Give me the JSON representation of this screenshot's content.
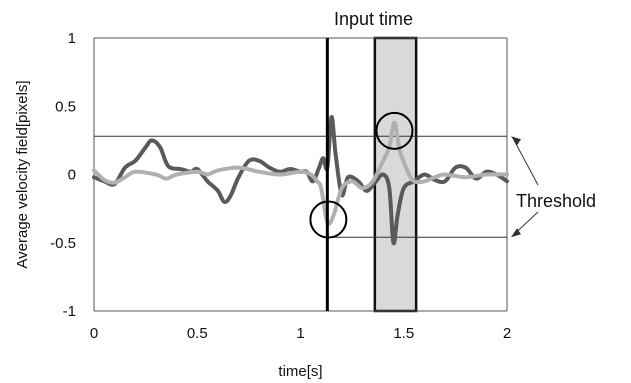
{
  "chart_data": {
    "type": "line",
    "xlabel": "time[s]",
    "ylabel": "Average velocity field[pixels]",
    "xlim": [
      0,
      2
    ],
    "ylim": [
      -1,
      1
    ],
    "xticks": [
      0,
      0.5,
      1,
      1.5,
      2
    ],
    "xtick_labels": [
      "0",
      "0.5",
      "1",
      "1.5",
      "2"
    ],
    "yticks": [
      1,
      0.5,
      0,
      -0.5,
      -1
    ],
    "ytick_labels": [
      "1",
      "0.5",
      "0",
      "-0.5",
      "-1"
    ],
    "grid": false,
    "threshold": {
      "upper": 0.28,
      "lower": -0.46,
      "label": "Threshold"
    },
    "input_marker": {
      "x": 1.13
    },
    "input_time": {
      "label": "Input time",
      "x_range": [
        1.36,
        1.56
      ],
      "color": "#d9d9d9"
    },
    "circled_points": [
      {
        "x": 1.135,
        "y": -0.33
      },
      {
        "x": 1.455,
        "y": 0.32
      }
    ],
    "series": [
      {
        "color": "#5a5a5a",
        "values": [
          [
            0,
            -0.02
          ],
          [
            0.05,
            -0.05
          ],
          [
            0.1,
            -0.07
          ],
          [
            0.15,
            0.05
          ],
          [
            0.2,
            0.1
          ],
          [
            0.25,
            0.2
          ],
          [
            0.28,
            0.25
          ],
          [
            0.32,
            0.2
          ],
          [
            0.36,
            0.06
          ],
          [
            0.42,
            0.04
          ],
          [
            0.47,
            0.02
          ],
          [
            0.5,
            0.04
          ],
          [
            0.55,
            -0.05
          ],
          [
            0.6,
            -0.12
          ],
          [
            0.63,
            -0.2
          ],
          [
            0.66,
            -0.16
          ],
          [
            0.7,
            -0.02
          ],
          [
            0.75,
            0.1
          ],
          [
            0.8,
            0.1
          ],
          [
            0.85,
            0.05
          ],
          [
            0.9,
            0.02
          ],
          [
            0.95,
            0.04
          ],
          [
            1.0,
            0.02
          ],
          [
            1.03,
            0.02
          ],
          [
            1.06,
            -0.05
          ],
          [
            1.09,
            0.05
          ],
          [
            1.11,
            0.12
          ],
          [
            1.13,
            0.05
          ],
          [
            1.15,
            0.42
          ],
          [
            1.17,
            0.15
          ],
          [
            1.2,
            -0.15
          ],
          [
            1.23,
            -0.02
          ],
          [
            1.28,
            -0.05
          ],
          [
            1.32,
            -0.12
          ],
          [
            1.36,
            -0.06
          ],
          [
            1.4,
            0.0
          ],
          [
            1.43,
            -0.1
          ],
          [
            1.45,
            -0.5
          ],
          [
            1.47,
            -0.3
          ],
          [
            1.5,
            -0.1
          ],
          [
            1.55,
            -0.05
          ],
          [
            1.6,
            0.0
          ],
          [
            1.65,
            -0.04
          ],
          [
            1.7,
            -0.05
          ],
          [
            1.75,
            0.05
          ],
          [
            1.8,
            0.05
          ],
          [
            1.85,
            -0.03
          ],
          [
            1.9,
            0.02
          ],
          [
            1.95,
            0.0
          ],
          [
            2.0,
            -0.05
          ]
        ]
      },
      {
        "color": "#b0b0b0",
        "values": [
          [
            0,
            0.03
          ],
          [
            0.05,
            -0.04
          ],
          [
            0.1,
            -0.06
          ],
          [
            0.15,
            -0.02
          ],
          [
            0.2,
            0.02
          ],
          [
            0.3,
            0.0
          ],
          [
            0.35,
            -0.03
          ],
          [
            0.4,
            0.0
          ],
          [
            0.5,
            0.02
          ],
          [
            0.55,
            0.0
          ],
          [
            0.6,
            0.03
          ],
          [
            0.7,
            0.05
          ],
          [
            0.8,
            0.02
          ],
          [
            0.9,
            0.0
          ],
          [
            1.0,
            0.02
          ],
          [
            1.05,
            0.0
          ],
          [
            1.08,
            -0.05
          ],
          [
            1.1,
            -0.1
          ],
          [
            1.13,
            -0.35
          ],
          [
            1.16,
            -0.3
          ],
          [
            1.2,
            -0.1
          ],
          [
            1.25,
            -0.05
          ],
          [
            1.3,
            -0.1
          ],
          [
            1.35,
            -0.05
          ],
          [
            1.4,
            0.1
          ],
          [
            1.43,
            0.2
          ],
          [
            1.455,
            0.38
          ],
          [
            1.48,
            0.18
          ],
          [
            1.52,
            0.02
          ],
          [
            1.55,
            -0.05
          ],
          [
            1.6,
            -0.05
          ],
          [
            1.65,
            -0.02
          ],
          [
            1.7,
            0.0
          ],
          [
            1.8,
            -0.02
          ],
          [
            1.9,
            0.0
          ],
          [
            2.0,
            0.0
          ]
        ]
      }
    ]
  }
}
